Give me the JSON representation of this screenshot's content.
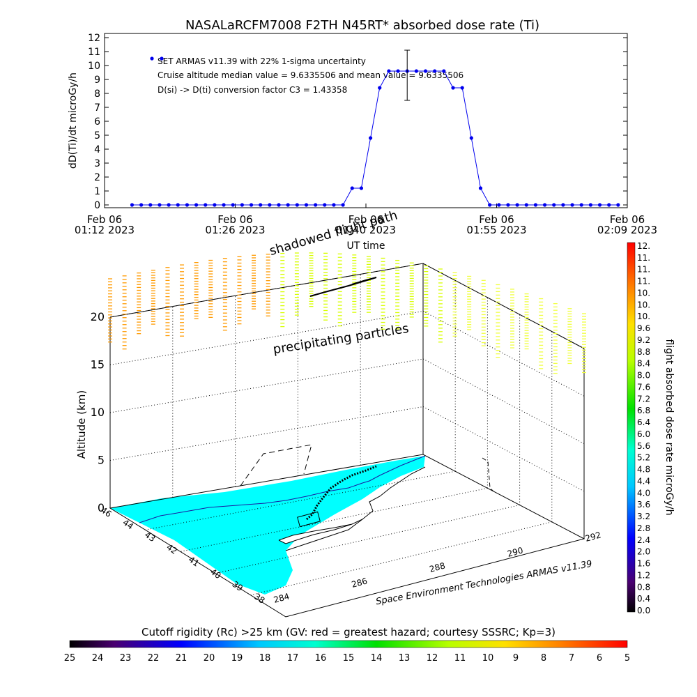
{
  "title": "NASALaRCFM7008  F2TH N45RT* absorbed dose rate (Ti)",
  "chart_data": [
    {
      "type": "line",
      "ylabel": "dD(Ti)/dt microGy/h",
      "xlabel": "UT time",
      "ylim": [
        0,
        12
      ],
      "yticks": [
        "0",
        "1",
        "2",
        "3",
        "4",
        "5",
        "6",
        "7",
        "8",
        "9",
        "10",
        "11",
        "12"
      ],
      "xtick_labels": [
        {
          "date": "Feb 06",
          "time": "01:12 2023"
        },
        {
          "date": "Feb 06",
          "time": "01:26 2023"
        },
        {
          "date": "Feb 06",
          "time": "01:40 2023"
        },
        {
          "date": "Feb 06",
          "time": "01:55 2023"
        },
        {
          "date": "Feb 06",
          "time": "02:09 2023"
        }
      ],
      "x_start": "01:12",
      "x_end": "02:09",
      "annotations": [
        "SET ARMAS v11.39 with 22% 1-sigma uncertainty",
        "Cruise altitude median value = 9.6335506 and mean value = 9.6335506",
        "D(si) -> D(ti) conversion factor C3 = 1.43358"
      ],
      "legend_points_value": 10.5,
      "error_bar": {
        "x": "01:45",
        "center": 9.6,
        "low": 7.5,
        "high": 11.1
      },
      "series": [
        {
          "color": "#0000ee",
          "points": [
            [
              "01:15",
              0
            ],
            [
              "01:16",
              0
            ],
            [
              "01:17",
              0
            ],
            [
              "01:18",
              0
            ],
            [
              "01:19",
              0
            ],
            [
              "01:20",
              0
            ],
            [
              "01:21",
              0
            ],
            [
              "01:22",
              0
            ],
            [
              "01:23",
              0
            ],
            [
              "01:24",
              0
            ],
            [
              "01:25",
              0
            ],
            [
              "01:26",
              0
            ],
            [
              "01:27",
              0
            ],
            [
              "01:28",
              0
            ],
            [
              "01:29",
              0
            ],
            [
              "01:30",
              0
            ],
            [
              "01:31",
              0
            ],
            [
              "01:32",
              0
            ],
            [
              "01:33",
              0
            ],
            [
              "01:34",
              0
            ],
            [
              "01:35",
              0
            ],
            [
              "01:36",
              0
            ],
            [
              "01:37",
              0
            ],
            [
              "01:38",
              0
            ],
            [
              "01:39",
              1.2
            ],
            [
              "01:40",
              1.2
            ],
            [
              "01:41",
              4.8
            ],
            [
              "01:42",
              8.4
            ],
            [
              "01:43",
              9.6
            ],
            [
              "01:44",
              9.6
            ],
            [
              "01:45",
              9.6
            ],
            [
              "01:46",
              9.6
            ],
            [
              "01:47",
              9.6
            ],
            [
              "01:48",
              9.6
            ],
            [
              "01:49",
              9.6
            ],
            [
              "01:50",
              8.4
            ],
            [
              "01:51",
              8.4
            ],
            [
              "01:52",
              4.8
            ],
            [
              "01:53",
              1.2
            ],
            [
              "01:54",
              0
            ],
            [
              "01:55",
              0
            ],
            [
              "01:56",
              0
            ],
            [
              "01:57",
              0
            ],
            [
              "01:58",
              0
            ],
            [
              "01:59",
              0
            ],
            [
              "02:00",
              0
            ],
            [
              "02:01",
              0
            ],
            [
              "02:02",
              0
            ],
            [
              "02:03",
              0
            ],
            [
              "02:04",
              0
            ],
            [
              "02:05",
              0
            ],
            [
              "02:06",
              0
            ],
            [
              "02:07",
              0
            ],
            [
              "02:08",
              0
            ]
          ]
        }
      ]
    },
    {
      "type": "other",
      "description_labels": {
        "ylabel": "Altitude (km)",
        "zticks": [
          "0",
          "5",
          "10",
          "15",
          "20"
        ],
        "lat_ticks": [
          "46",
          "44",
          "43",
          "42",
          "41",
          "40",
          "39",
          "38"
        ],
        "lon_ticks": [
          "284",
          "286",
          "288",
          "290",
          "292"
        ],
        "annotation_shadowed": "shadowed flight path",
        "annotation_particles": "precipitating particles",
        "credit": "Space Environment Technologies ARMAS v11.39"
      },
      "colorbar_right": {
        "label": "flight absorbed dose rate microGy/h",
        "ticks": [
          "0.0",
          "0.4",
          "0.8",
          "1.2",
          "1.6",
          "2.0",
          "2.4",
          "2.8",
          "3.2",
          "3.6",
          "4.0",
          "4.4",
          "4.8",
          "5.2",
          "5.6",
          "6.0",
          "6.4",
          "6.8",
          "7.2",
          "7.6",
          "8.0",
          "8.4",
          "8.8",
          "9.2",
          "9.6",
          "10.",
          "10.",
          "10.",
          "11.",
          "11.",
          "11.",
          "12."
        ]
      },
      "colorbar_bottom": {
        "label": "Cutoff rigidity (Rc) >25 km (GV: red = greatest hazard; courtesy SSSRC; Kp=3)",
        "ticks": [
          "25",
          "24",
          "23",
          "22",
          "21",
          "20",
          "19",
          "18",
          "17",
          "16",
          "15",
          "14",
          "13",
          "12",
          "11",
          "10",
          "9",
          "8",
          "7",
          "6",
          "5"
        ]
      }
    }
  ]
}
